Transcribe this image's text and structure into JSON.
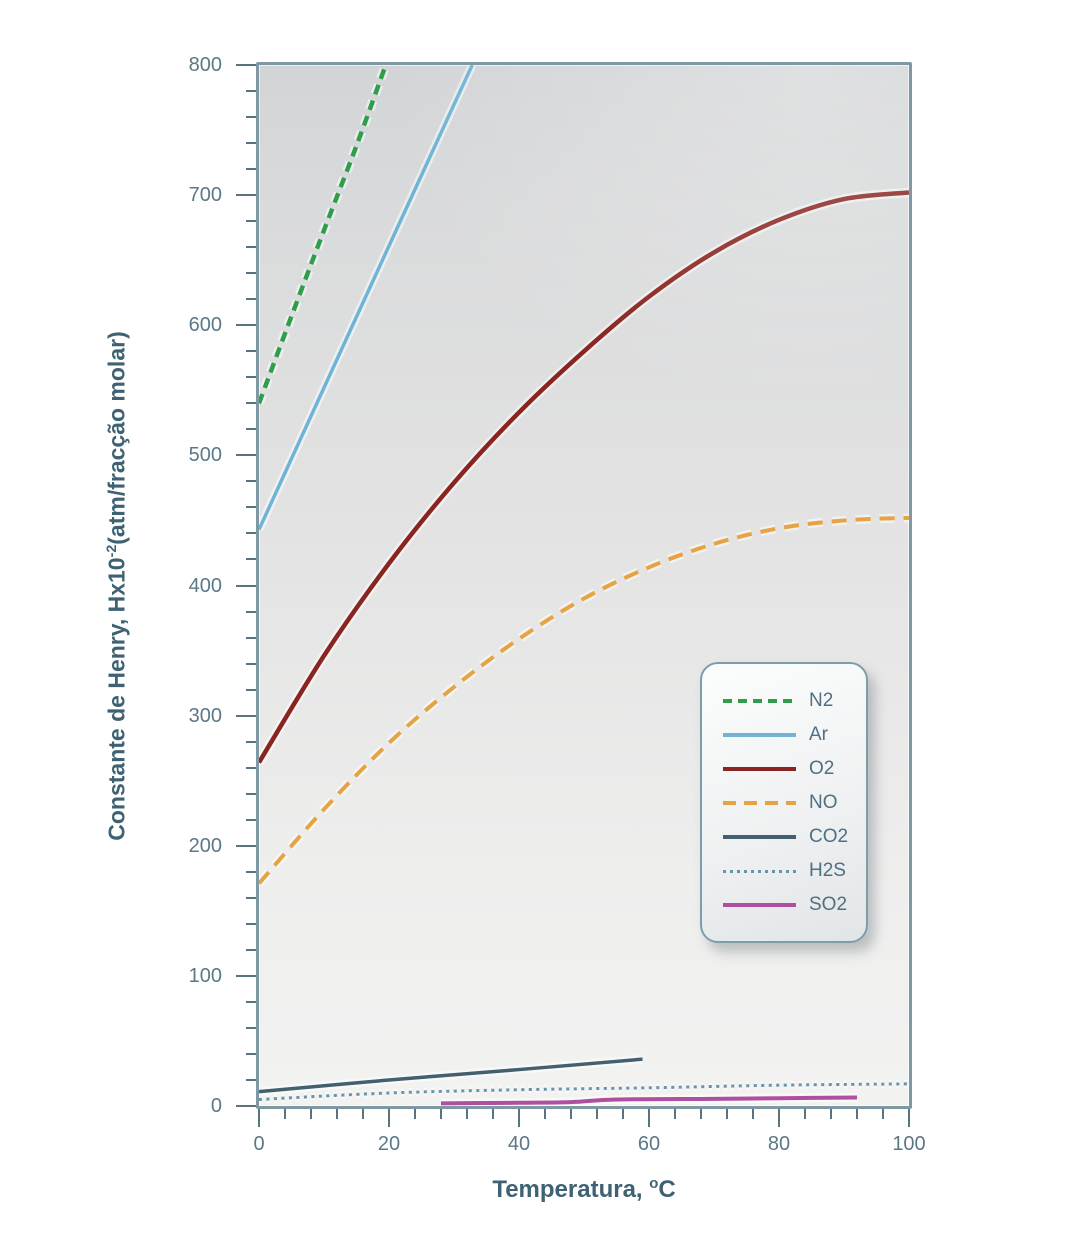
{
  "axes": {
    "y_title": {
      "prefix": "Constante de Henry, Hx10",
      "sup": "-2",
      "suffix": "(atm/fracção molar)"
    },
    "x_title": {
      "prefix": "Temperatura, ",
      "sup": "o",
      "suffix": "C"
    },
    "y_ticks": [
      "0",
      "100",
      "200",
      "300",
      "400",
      "500",
      "600",
      "700",
      "800"
    ],
    "x_ticks": [
      "0",
      "20",
      "40",
      "60",
      "80",
      "100"
    ]
  },
  "colors": {
    "frame": "#7f99a4",
    "tick": "#57747f",
    "tick_label": "#5b7886",
    "axis_title": "#3e6273",
    "plot_bg_top": "#d2d4d6",
    "plot_bg_bottom": "#f2f2f1",
    "legend_border": "#7e9dab"
  },
  "chart_data": {
    "type": "line",
    "xlabel": "Temperatura, ºC",
    "ylabel": "Constante de Henry, Hx10⁻²(atm/fracção molar)",
    "xlim": [
      0,
      100
    ],
    "ylim": [
      0,
      800
    ],
    "x_major_step": 20,
    "x_minor_step": 4,
    "y_major_step": 100,
    "y_minor_step": 20,
    "grid": false,
    "legend_position": "inside lower-right",
    "series": [
      {
        "name": "N2",
        "color": "#2f9e4b",
        "style": "dashed",
        "width": 4.5,
        "points": [
          [
            0,
            540
          ],
          [
            5,
            607
          ],
          [
            10,
            673
          ],
          [
            15,
            738
          ],
          [
            19.5,
            800
          ]
        ]
      },
      {
        "name": "Ar",
        "color": "#6fb4d6",
        "style": "solid",
        "width": 3.5,
        "points": [
          [
            0,
            443
          ],
          [
            10,
            552
          ],
          [
            20,
            661
          ],
          [
            32.8,
            800
          ]
        ]
      },
      {
        "name": "O2",
        "color": "#8a2420",
        "style": "solid",
        "width": 4.5,
        "points": [
          [
            0,
            264
          ],
          [
            10,
            346
          ],
          [
            20,
            417
          ],
          [
            30,
            479
          ],
          [
            40,
            533
          ],
          [
            50,
            580
          ],
          [
            60,
            622
          ],
          [
            70,
            656
          ],
          [
            80,
            681
          ],
          [
            90,
            697
          ],
          [
            100,
            702
          ]
        ]
      },
      {
        "name": "NO",
        "color": "#e6a243",
        "style": "dashed-long",
        "width": 4,
        "points": [
          [
            0,
            171
          ],
          [
            10,
            228
          ],
          [
            20,
            279
          ],
          [
            30,
            322
          ],
          [
            40,
            359
          ],
          [
            50,
            390
          ],
          [
            60,
            414
          ],
          [
            70,
            432
          ],
          [
            80,
            444
          ],
          [
            90,
            450
          ],
          [
            100,
            452
          ]
        ]
      },
      {
        "name": "CO2",
        "color": "#42606e",
        "style": "solid",
        "width": 3.5,
        "points": [
          [
            0,
            11
          ],
          [
            20,
            20
          ],
          [
            40,
            28
          ],
          [
            59,
            36
          ]
        ]
      },
      {
        "name": "H2S",
        "color": "#6793ab",
        "style": "dotted",
        "width": 3,
        "points": [
          [
            0,
            5
          ],
          [
            20,
            10
          ],
          [
            40,
            12.5
          ],
          [
            60,
            14
          ],
          [
            80,
            16
          ],
          [
            100,
            17
          ]
        ]
      },
      {
        "name": "SO2",
        "color": "#af4fa0",
        "style": "solid",
        "width": 4,
        "points": [
          [
            28,
            2
          ],
          [
            40,
            2.5
          ],
          [
            48,
            3
          ],
          [
            55,
            5
          ],
          [
            70,
            5.5
          ],
          [
            80,
            6
          ],
          [
            92,
            6.5
          ]
        ]
      }
    ]
  }
}
